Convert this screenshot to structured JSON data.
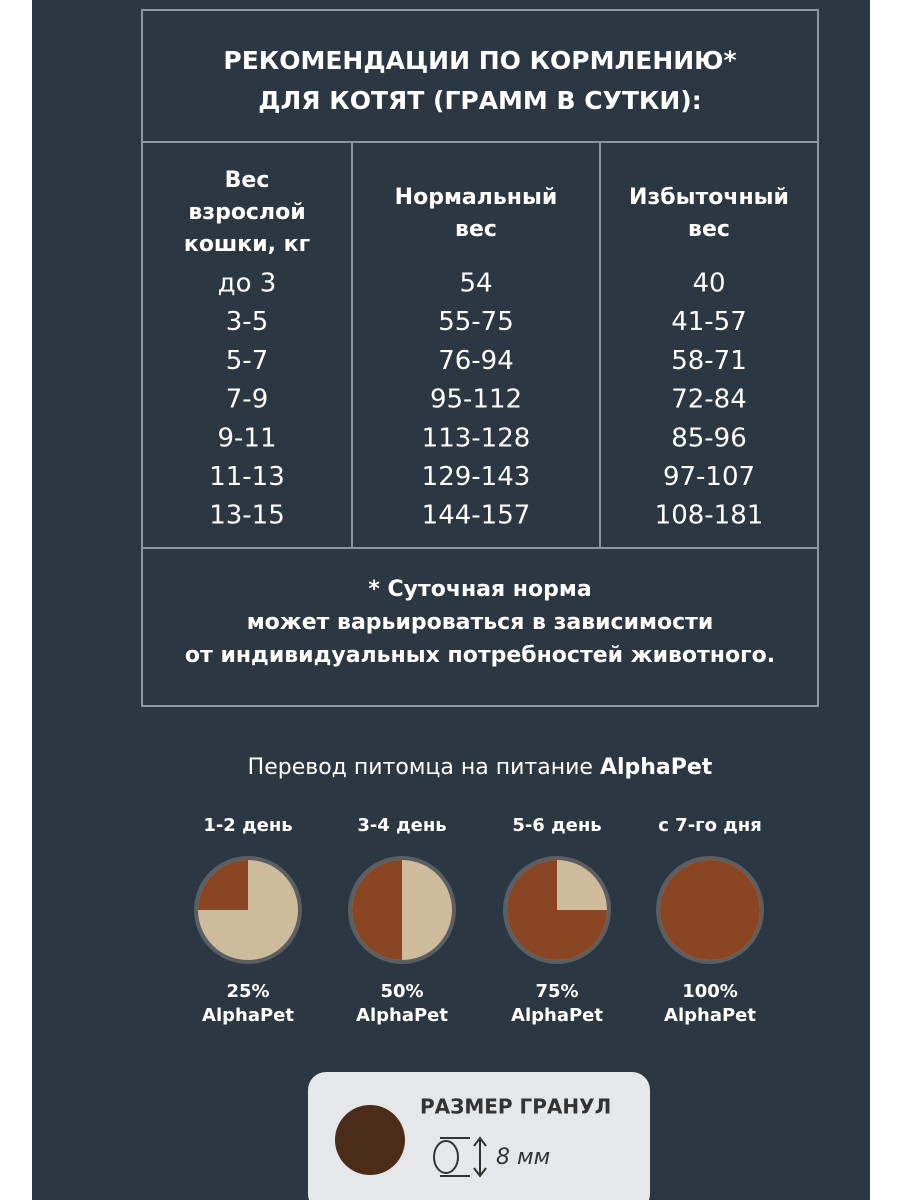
{
  "table": {
    "title_lines": [
      "РЕКОМЕНДАЦИИ ПО КОРМЛЕНИЮ*",
      "ДЛЯ КОТЯТ (ГРАММ В СУТКИ):"
    ],
    "headers": [
      [
        "Вес",
        "взрослой",
        "кошки, кг"
      ],
      [
        "Нормальный",
        "вес"
      ],
      [
        "Избыточный",
        "вес"
      ]
    ],
    "rows": [
      [
        "до 3",
        "54",
        "40"
      ],
      [
        "3-5",
        "55-75",
        "41-57"
      ],
      [
        "5-7",
        "76-94",
        "58-71"
      ],
      [
        "7-9",
        "95-112",
        "72-84"
      ],
      [
        "9-11",
        "113-128",
        "85-96"
      ],
      [
        "11-13",
        "129-143",
        "97-107"
      ],
      [
        "13-15",
        "144-157",
        "108-181"
      ]
    ],
    "footnote_lines": [
      "* Суточная норма",
      "может варьироваться в зависимости",
      "от индивидуальных потребностей животного."
    ]
  },
  "transition": {
    "title": "Перевод питомца на питание",
    "brand": "AlphaPet",
    "steps": [
      {
        "day": "1-2 день",
        "share": 25,
        "share_label": "25%",
        "brand": "AlphaPet"
      },
      {
        "day": "3-4 день",
        "share": 50,
        "share_label": "50%",
        "brand": "AlphaPet"
      },
      {
        "day": "5-6 день",
        "share": 75,
        "share_label": "75%",
        "brand": "AlphaPet"
      },
      {
        "day": "с 7-го дня",
        "share": 100,
        "share_label": "100%",
        "brand": "AlphaPet"
      }
    ]
  },
  "granules": {
    "label": "РАЗМЕР ГРАНУЛ",
    "size": "8 мм"
  }
}
